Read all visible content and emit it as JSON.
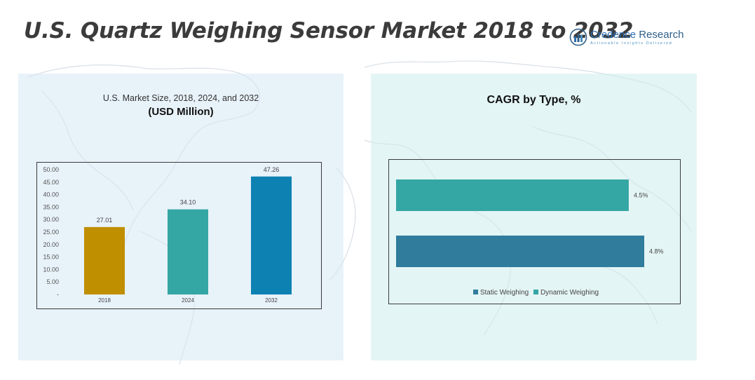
{
  "title": "U.S. Quartz Weighing Sensor Market 2018 to 2032",
  "logo": {
    "name_brand": "Credence",
    "name_rest": " Research",
    "tagline": "Actionable Insights Delivered",
    "icon": "bar-chart-logo-icon"
  },
  "colors": {
    "bar_2018": "#c08f00",
    "bar_2024": "#34a6a3",
    "bar_2032": "#0e81b3",
    "static_weighing": "#2f7c9c",
    "dynamic_weighing": "#34a6a3"
  },
  "chart_data": [
    {
      "type": "bar",
      "title": "U.S. Market Size, 2018, 2024, and 2032",
      "subtitle": "(USD Million)",
      "categories": [
        "2018",
        "2024",
        "2032"
      ],
      "values": [
        27.01,
        34.1,
        47.26
      ],
      "value_labels": [
        "27.01",
        "34.10",
        "47.26"
      ],
      "ylim": [
        0,
        50
      ],
      "yticks": [
        "-",
        "5.00",
        "10.00",
        "15.00",
        "20.00",
        "25.00",
        "30.00",
        "35.00",
        "40.00",
        "45.00",
        "50.00"
      ],
      "grid": false
    },
    {
      "type": "bar",
      "orientation": "horizontal",
      "title": "CAGR by Type, %",
      "series": [
        {
          "name": "Static Weighing",
          "value": 4.8,
          "label": "4.8%"
        },
        {
          "name": "Dynamic Weighing",
          "value": 4.5,
          "label": "4.5%"
        }
      ],
      "legend": "bottom",
      "grid": false
    }
  ]
}
